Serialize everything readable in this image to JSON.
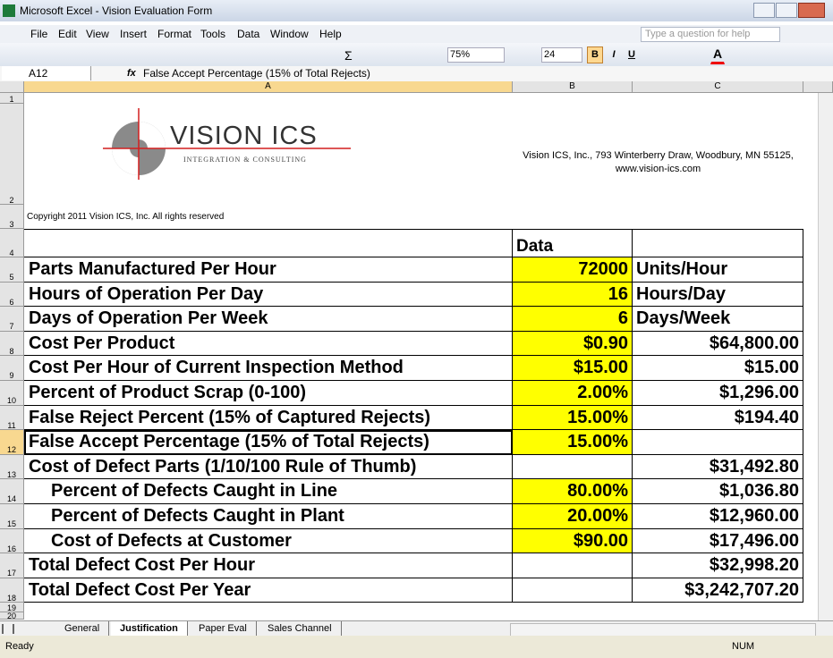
{
  "window": {
    "title": "Microsoft Excel - Vision Evaluation Form"
  },
  "menu": [
    "File",
    "Edit",
    "View",
    "Insert",
    "Format",
    "Tools",
    "Data",
    "Window",
    "Help"
  ],
  "help_box": "Type a question for help",
  "toolbar": {
    "sum": "Σ",
    "zoom": "75%",
    "font_size": "24",
    "bold": "B",
    "italic": "I",
    "underline": "U",
    "font_color": "A"
  },
  "formula_bar": {
    "name_box": "A12",
    "fx": "fx",
    "formula": "False Accept Percentage (15% of Total Rejects)"
  },
  "columns": [
    "A",
    "B",
    "C"
  ],
  "row_numbers": [
    "1",
    "2",
    "3",
    "4",
    "5",
    "6",
    "7",
    "8",
    "9",
    "10",
    "11",
    "12",
    "13",
    "14",
    "15",
    "16",
    "17",
    "18",
    "19",
    "20"
  ],
  "logo": {
    "name": "VISION ICS",
    "tagline": "INTEGRATION & CONSULTING"
  },
  "address": [
    "Vision ICS, Inc., 793 Winterberry Draw, Woodbury, MN 55125,",
    "www.vision-ics.com"
  ],
  "copyright": "Copyright 2011 Vision ICS, Inc. All rights reserved",
  "data_header": "Data",
  "rows": [
    {
      "label": "Parts Manufactured Per Hour",
      "value": "72000",
      "extra": "Units/Hour",
      "indent": false,
      "highlight": true
    },
    {
      "label": "Hours of Operation Per Day",
      "value": "16",
      "extra": "Hours/Day",
      "indent": false,
      "highlight": true
    },
    {
      "label": "Days of Operation Per Week",
      "value": "6",
      "extra": "Days/Week",
      "indent": false,
      "highlight": true
    },
    {
      "label": "Cost Per Product",
      "value": "$0.90",
      "extra": "$64,800.00",
      "indent": false,
      "highlight": true
    },
    {
      "label": "Cost Per Hour of Current Inspection Method",
      "value": "$15.00",
      "extra": "$15.00",
      "indent": false,
      "highlight": true
    },
    {
      "label": "Percent of Product Scrap (0-100)",
      "value": "2.00%",
      "extra": "$1,296.00",
      "indent": false,
      "highlight": true
    },
    {
      "label": "False Reject Percent (15% of Captured Rejects)",
      "value": "15.00%",
      "extra": "$194.40",
      "indent": false,
      "highlight": true
    },
    {
      "label": "False Accept Percentage (15% of Total Rejects)",
      "value": "15.00%",
      "extra": null,
      "indent": false,
      "highlight": true
    },
    {
      "label": "Cost of Defect Parts (1/10/100 Rule of Thumb)",
      "value": null,
      "extra": "$31,492.80",
      "indent": false,
      "highlight": false
    },
    {
      "label": "Percent of Defects Caught in Line",
      "value": "80.00%",
      "extra": "$1,036.80",
      "indent": true,
      "highlight": true
    },
    {
      "label": "Percent of Defects Caught in Plant",
      "value": "20.00%",
      "extra": "$12,960.00",
      "indent": true,
      "highlight": true
    },
    {
      "label": "Cost of Defects at Customer",
      "value": "$90.00",
      "extra": "$17,496.00",
      "indent": true,
      "highlight": true
    },
    {
      "label": "Total Defect Cost Per Hour",
      "value": null,
      "extra": "$32,998.20",
      "indent": false,
      "highlight": false
    },
    {
      "label": "Total Defect Cost Per Year",
      "value": null,
      "extra": "$3,242,707.20",
      "indent": false,
      "highlight": false
    }
  ],
  "highlight_color": "#ffff00",
  "sheet_tabs": [
    "General",
    "Justification",
    "Paper Eval",
    "Sales Channel"
  ],
  "active_tab": 1,
  "status": {
    "left": "Ready",
    "right": "NUM"
  }
}
